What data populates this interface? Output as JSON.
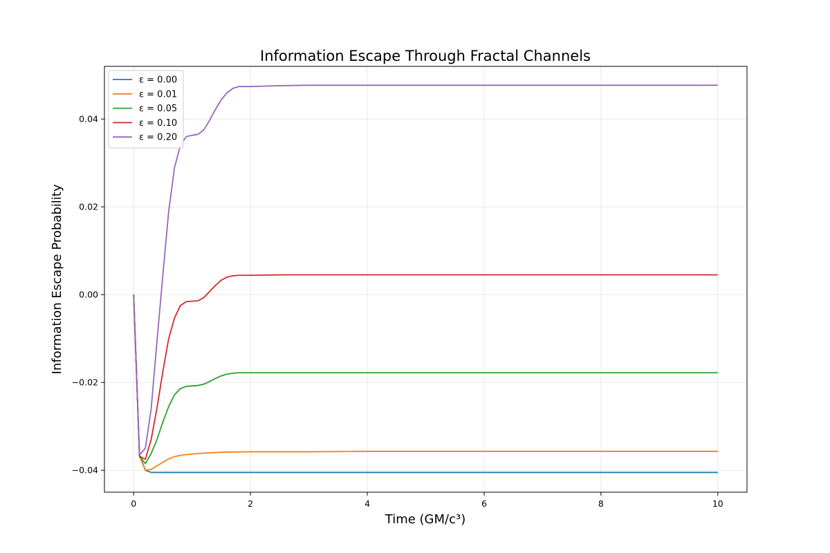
{
  "chart_data": {
    "type": "line",
    "title": "Information Escape Through Fractal Channels",
    "xlabel": "Time (GM/c³)",
    "ylabel": "Information Escape Probability",
    "xlim": [
      -0.5,
      10.5
    ],
    "ylim": [
      -0.045,
      0.052
    ],
    "xticks": [
      0,
      2,
      4,
      6,
      8,
      10
    ],
    "xtick_labels": [
      "0",
      "2",
      "4",
      "6",
      "8",
      "10"
    ],
    "yticks": [
      -0.04,
      -0.02,
      0.0,
      0.02,
      0.04
    ],
    "ytick_labels": [
      "−0.04",
      "−0.02",
      "0.00",
      "0.02",
      "0.04"
    ],
    "grid": true,
    "legend_position": "top-left",
    "series": [
      {
        "name": "ε = 0.00",
        "color": "#1f77b4",
        "x": [
          0,
          0.1,
          0.2,
          0.3,
          0.5,
          1,
          2,
          4,
          6,
          8,
          10
        ],
        "y": [
          0,
          -0.0365,
          -0.04,
          -0.0405,
          -0.0405,
          -0.0405,
          -0.0405,
          -0.0405,
          -0.0405,
          -0.0405,
          -0.0405
        ]
      },
      {
        "name": "ε = 0.01",
        "color": "#ff7f0e",
        "x": [
          0,
          0.1,
          0.2,
          0.3,
          0.4,
          0.5,
          0.6,
          0.7,
          0.8,
          1.0,
          1.2,
          1.5,
          2,
          3,
          4,
          6,
          8,
          10
        ],
        "y": [
          0,
          -0.0368,
          -0.04,
          -0.0398,
          -0.039,
          -0.0382,
          -0.0374,
          -0.0369,
          -0.0366,
          -0.0363,
          -0.0361,
          -0.0359,
          -0.0358,
          -0.0358,
          -0.0357,
          -0.0357,
          -0.0357,
          -0.0357
        ]
      },
      {
        "name": "ε = 0.05",
        "color": "#2ca02c",
        "x": [
          0,
          0.1,
          0.2,
          0.3,
          0.4,
          0.5,
          0.6,
          0.7,
          0.8,
          0.9,
          1.0,
          1.1,
          1.2,
          1.3,
          1.4,
          1.5,
          1.6,
          1.7,
          1.8,
          2.0,
          2.5,
          3,
          4,
          6,
          8,
          10
        ],
        "y": [
          0,
          -0.0368,
          -0.0385,
          -0.0362,
          -0.033,
          -0.029,
          -0.0255,
          -0.0228,
          -0.0214,
          -0.0209,
          -0.0208,
          -0.0207,
          -0.0204,
          -0.0198,
          -0.0191,
          -0.0185,
          -0.0181,
          -0.0179,
          -0.0178,
          -0.0178,
          -0.0178,
          -0.0178,
          -0.0178,
          -0.0178,
          -0.0178,
          -0.0178
        ]
      },
      {
        "name": "ε = 0.10",
        "color": "#d62728",
        "x": [
          0,
          0.1,
          0.2,
          0.3,
          0.4,
          0.5,
          0.6,
          0.7,
          0.8,
          0.9,
          1.0,
          1.1,
          1.2,
          1.3,
          1.4,
          1.5,
          1.6,
          1.7,
          1.8,
          1.9,
          2.0,
          2.5,
          3,
          4,
          6,
          8,
          10
        ],
        "y": [
          0,
          -0.0368,
          -0.0375,
          -0.033,
          -0.0258,
          -0.0175,
          -0.01,
          -0.0053,
          -0.0025,
          -0.0016,
          -0.0015,
          -0.0014,
          -0.0007,
          0.0007,
          0.0021,
          0.0033,
          0.004,
          0.0043,
          0.0044,
          0.0044,
          0.0044,
          0.0045,
          0.0045,
          0.0045,
          0.0045,
          0.0045,
          0.0045
        ]
      },
      {
        "name": "ε = 0.20",
        "color": "#9467bd",
        "x": [
          0,
          0.1,
          0.2,
          0.3,
          0.4,
          0.5,
          0.6,
          0.7,
          0.8,
          0.9,
          1.0,
          1.1,
          1.2,
          1.3,
          1.4,
          1.5,
          1.6,
          1.7,
          1.8,
          1.9,
          2.0,
          2.5,
          3,
          4,
          6,
          8,
          10
        ],
        "y": [
          0,
          -0.0365,
          -0.035,
          -0.026,
          -0.0105,
          0.0045,
          0.019,
          0.029,
          0.034,
          0.036,
          0.0363,
          0.0365,
          0.0375,
          0.0397,
          0.0422,
          0.0444,
          0.046,
          0.047,
          0.0474,
          0.0474,
          0.0474,
          0.0476,
          0.0477,
          0.0477,
          0.0477,
          0.0477,
          0.0477
        ]
      }
    ]
  }
}
